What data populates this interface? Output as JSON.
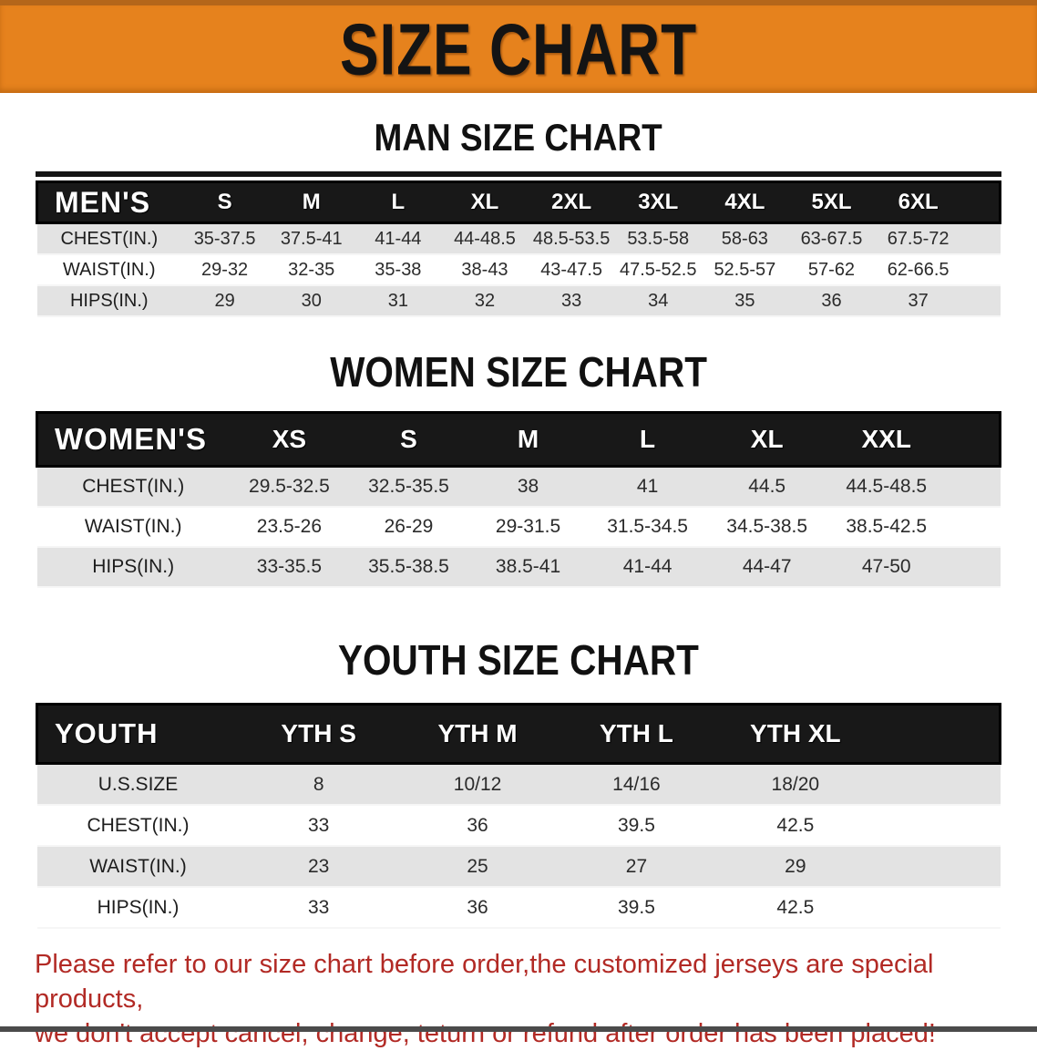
{
  "banner": {
    "title": "SIZE CHART"
  },
  "sections": [
    {
      "heading": "MAN SIZE CHART",
      "group_label": "MEN'S",
      "columns": [
        "S",
        "M",
        "L",
        "XL",
        "2XL",
        "3XL",
        "4XL",
        "5XL",
        "6XL"
      ],
      "rows": [
        {
          "label": "CHEST(IN.)",
          "values": [
            "35-37.5",
            "37.5-41",
            "41-44",
            "44-48.5",
            "48.5-53.5",
            "53.5-58",
            "58-63",
            "63-67.5",
            "67.5-72"
          ]
        },
        {
          "label": "WAIST(IN.)",
          "values": [
            "29-32",
            "32-35",
            "35-38",
            "38-43",
            "43-47.5",
            "47.5-52.5",
            "52.5-57",
            "57-62",
            "62-66.5"
          ]
        },
        {
          "label": "HIPS(IN.)",
          "values": [
            "29",
            "30",
            "31",
            "32",
            "33",
            "34",
            "35",
            "36",
            "37"
          ]
        }
      ]
    },
    {
      "heading": "WOMEN SIZE CHART",
      "group_label": "WOMEN'S",
      "columns": [
        "XS",
        "S",
        "M",
        "L",
        "XL",
        "XXL"
      ],
      "rows": [
        {
          "label": "CHEST(IN.)",
          "values": [
            "29.5-32.5",
            "32.5-35.5",
            "38",
            "41",
            "44.5",
            "44.5-48.5"
          ]
        },
        {
          "label": "WAIST(IN.)",
          "values": [
            "23.5-26",
            "26-29",
            "29-31.5",
            "31.5-34.5",
            "34.5-38.5",
            "38.5-42.5"
          ]
        },
        {
          "label": "HIPS(IN.)",
          "values": [
            "33-35.5",
            "35.5-38.5",
            "38.5-41",
            "41-44",
            "44-47",
            "47-50"
          ]
        }
      ]
    },
    {
      "heading": "YOUTH SIZE CHART",
      "group_label": "YOUTH",
      "columns": [
        "YTH S",
        "YTH M",
        "YTH L",
        "YTH XL"
      ],
      "rows": [
        {
          "label": "U.S.SIZE",
          "values": [
            "8",
            "10/12",
            "14/16",
            "18/20"
          ]
        },
        {
          "label": "CHEST(IN.)",
          "values": [
            "33",
            "36",
            "39.5",
            "42.5"
          ]
        },
        {
          "label": "WAIST(IN.)",
          "values": [
            "23",
            "25",
            "27",
            "29"
          ]
        },
        {
          "label": "HIPS(IN.)",
          "values": [
            "33",
            "36",
            "39.5",
            "42.5"
          ]
        }
      ]
    }
  ],
  "disclaimer": {
    "line1": "Please refer to our size chart before order,the customized jerseys are special products,",
    "line2": "we don't accept cancel, change, teturn or refund after order has been placed!"
  },
  "colors": {
    "banner_bg": "#e6821d",
    "header_band_bg": "#181818",
    "row_shade": "#e3e3e3",
    "disclaimer_red": "#b22a25"
  }
}
